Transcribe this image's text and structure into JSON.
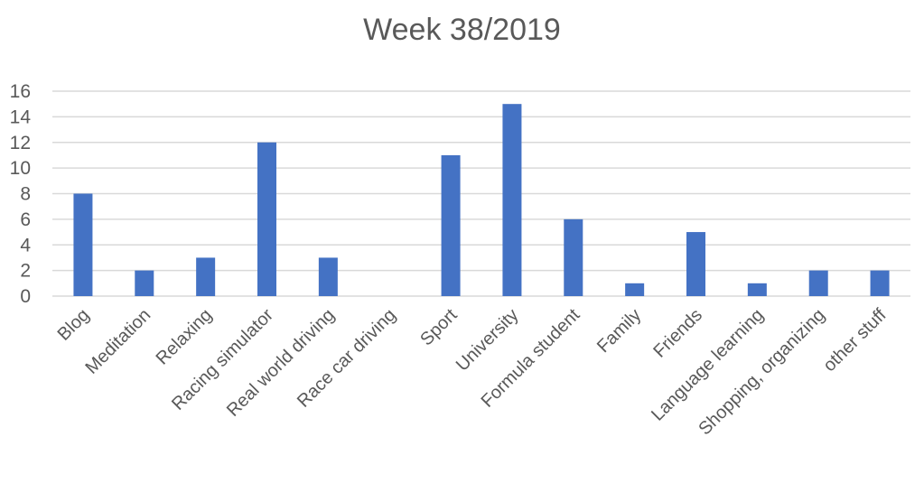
{
  "chart_data": {
    "type": "bar",
    "title": "Week 38/2019",
    "xlabel": "",
    "ylabel": "",
    "categories": [
      "Blog",
      "Meditation",
      "Relaxing",
      "Racing simulator",
      "Real world driving",
      "Race car driving",
      "Sport",
      "University",
      "Formula student",
      "Family",
      "Friends",
      "Language learning",
      "Shopping, organizing",
      "other stuff"
    ],
    "values": [
      8,
      2,
      3,
      12,
      3,
      0,
      11,
      15,
      6,
      1,
      5,
      1,
      2,
      2
    ],
    "ylim": [
      0,
      16
    ],
    "yticks": [
      "0",
      "2",
      "4",
      "6",
      "8",
      "10",
      "12",
      "14",
      "16"
    ],
    "grid": true,
    "legend": "none",
    "bar_color": "#4472C4"
  }
}
